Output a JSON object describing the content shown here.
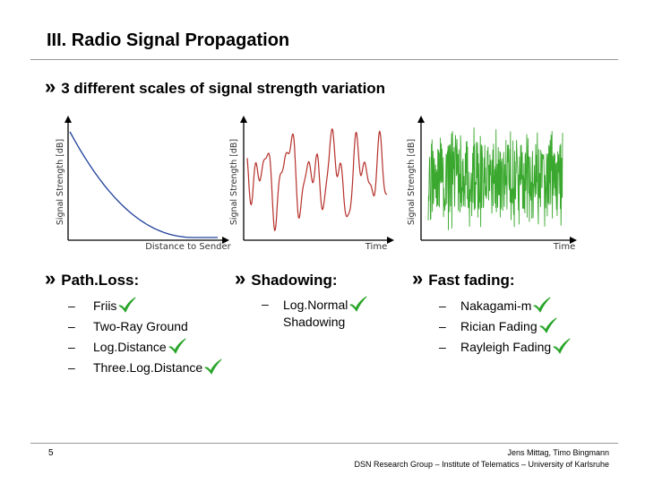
{
  "slide": {
    "title": "III. Radio Signal Propagation",
    "bullet_symbol": "»",
    "main_bullet": "3 different scales of signal strength variation"
  },
  "plots": [
    {
      "ylabel": "Signal Strength [dB]",
      "xlabel": "Distance to Sender",
      "trace_color": "#1e3f9a",
      "curve": "path-loss"
    },
    {
      "ylabel": "Signal Strength [dB]",
      "xlabel": "Time",
      "trace_color": "#b5302a",
      "curve": "shadowing"
    },
    {
      "ylabel": "Signal Strength [dB]",
      "xlabel": "Time",
      "trace_color": "#3aa82e",
      "curve": "fast-fading"
    }
  ],
  "columns": [
    {
      "heading": "Path.Loss:",
      "items": [
        {
          "dash": "–",
          "text": "Friis",
          "checked": true
        },
        {
          "dash": "–",
          "text": "Two-Ray Ground",
          "checked": false
        },
        {
          "dash": "–",
          "text": "Log.Distance",
          "checked": true
        },
        {
          "dash": "–",
          "text": "Three.Log.Distance",
          "checked": true
        }
      ]
    },
    {
      "heading": "Shadowing:",
      "items": [
        {
          "dash": "–",
          "text": "Log.Normal",
          "text2": "Shadowing",
          "checked": true
        }
      ]
    },
    {
      "heading": "Fast fading:",
      "items": [
        {
          "dash": "–",
          "text": "Nakagami-m",
          "checked": true
        },
        {
          "dash": "–",
          "text": "Rician Fading",
          "checked": true
        },
        {
          "dash": "–",
          "text": "Rayleigh Fading",
          "checked": true
        }
      ]
    }
  ],
  "check_color": "#2aa52a",
  "footer": {
    "page_number": "5",
    "authors": "Jens Mittag, Timo Bingmann",
    "group": "DSN Research Group – Institute of Telematics – University of Karlsruhe"
  }
}
